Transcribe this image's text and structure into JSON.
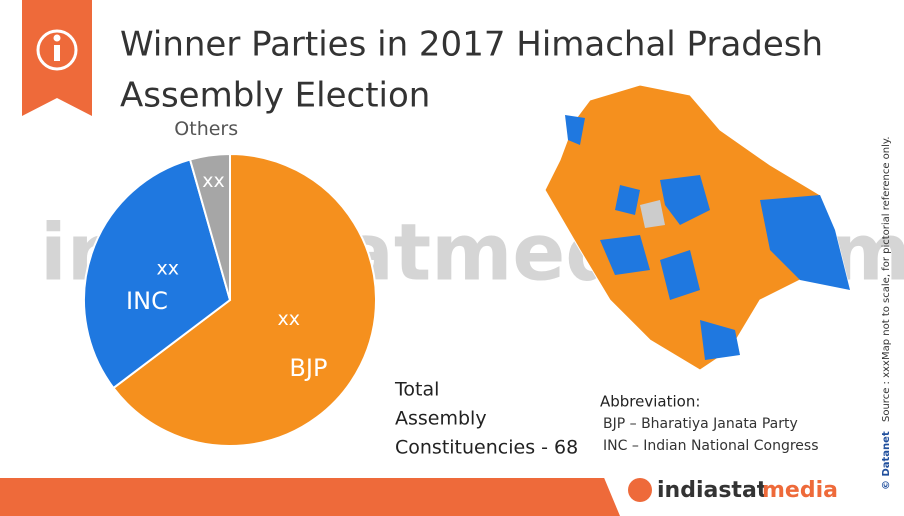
{
  "chart_data": {
    "type": "pie",
    "title": [
      "Winner Parties in 2017 Himachal Pradesh",
      "Assembly Election"
    ],
    "categories": [
      "BJP",
      "INC",
      "Others"
    ],
    "values": [
      44,
      21,
      3
    ],
    "value_labels": [
      "xx",
      "xx",
      "xx"
    ],
    "colors": [
      "#f5901e",
      "#1f78e0",
      "#a6a6a6"
    ],
    "total_note": [
      "Total",
      "Assembly",
      "Constituencies - 68"
    ],
    "abbreviation": {
      "title": "Abbreviation:",
      "lines": [
        "BJP – Bharatiya Janata Party",
        "INC – Indian National Congress"
      ]
    },
    "side_note": [
      "© Datanet",
      "Source : xxx",
      "Map not to scale, for pictorial reference only."
    ],
    "watermark": "indiastatmedia.com",
    "footer_logo": [
      "indiastat",
      "media"
    ]
  }
}
